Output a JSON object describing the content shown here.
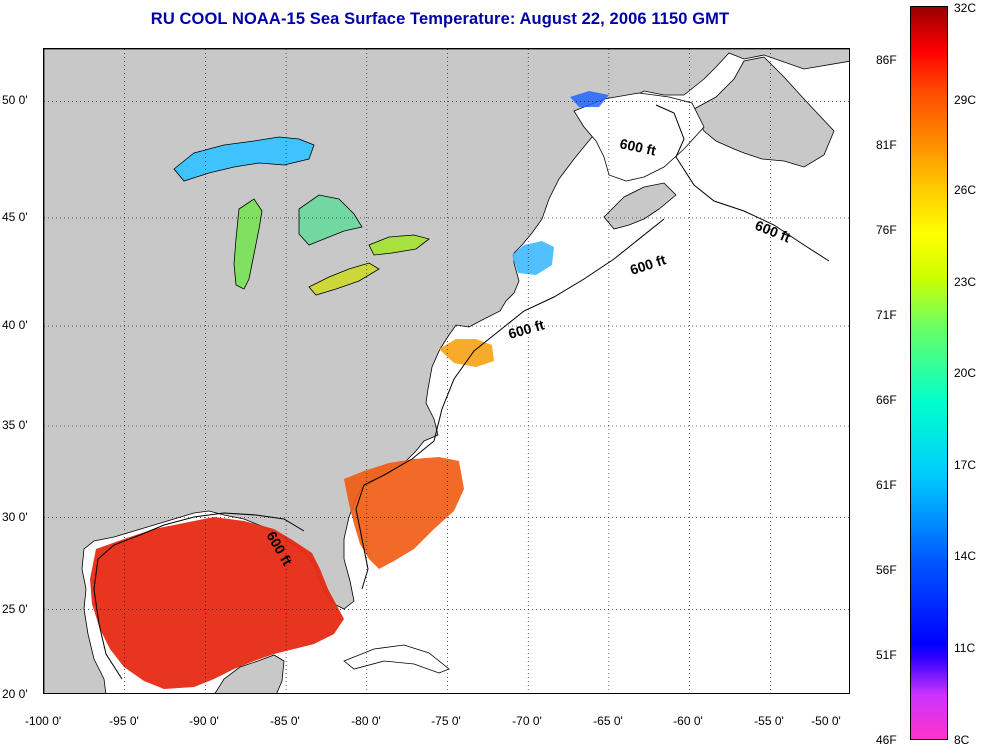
{
  "title": "RU COOL  NOAA-15  Sea Surface Temperature:  August 22, 2006 1150 GMT",
  "map": {
    "lon_range": [
      -100,
      -50
    ],
    "lat_range": [
      20,
      52.5
    ],
    "lon_ticks": [
      "-100 0'",
      "-95 0'",
      "-90 0'",
      "-85 0'",
      "-80 0'",
      "-75 0'",
      "-70 0'",
      "-65 0'",
      "-60 0'",
      "-55 0'",
      "-50 0'"
    ],
    "lat_ticks": [
      "20 0'",
      "25 0'",
      "30 0'",
      "35 0'",
      "40 0'",
      "45 0'",
      "50 0'"
    ],
    "contour_labels": [
      "600 ft",
      "600 ft",
      "600 ft",
      "600 ft",
      "600 ft"
    ],
    "land_color": "#c8c8c8",
    "no_data_color": "#ffffff"
  },
  "colorbar": {
    "fahrenheit_labels": [
      "86F",
      "81F",
      "76F",
      "71F",
      "66F",
      "61F",
      "56F",
      "51F",
      "46F"
    ],
    "celsius_labels": [
      "32C",
      "29C",
      "26C",
      "23C",
      "20C",
      "17C",
      "14C",
      "11C",
      "8C"
    ]
  }
}
